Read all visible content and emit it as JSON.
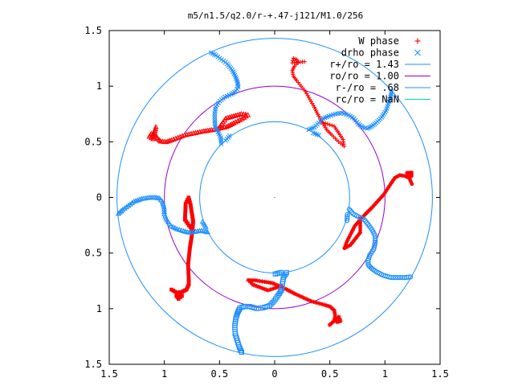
{
  "chart_data": {
    "type": "scatter",
    "title": "m5/n1.5/q2.0/r-+.47-j121/M1.0/256",
    "xlabel": "",
    "ylabel": "",
    "xlim": [
      -1.5,
      1.5
    ],
    "ylim": [
      -1.5,
      1.5
    ],
    "x_ticks": [
      -1.5,
      -1,
      -0.5,
      0,
      0.5,
      1,
      1.5
    ],
    "x_tick_labels": [
      "1.5",
      "1",
      "0.5",
      "0",
      "0.5",
      "1",
      "1.5"
    ],
    "y_ticks": [
      1.5,
      1,
      0.5,
      0,
      -0.5,
      -1,
      -1.5
    ],
    "y_tick_labels": [
      "1.5",
      "1",
      "0.5",
      "0",
      "0.5",
      "1",
      "1.5"
    ],
    "grid": false,
    "legend_position": "top-right",
    "legend": [
      {
        "label": "W phase",
        "symbol": "plus",
        "color": "#ff0000"
      },
      {
        "label": "drho phase",
        "symbol": "cross",
        "color": "#1e90ff"
      },
      {
        "label": "r+/ro = 1.43",
        "symbol": "line",
        "color": "#1e90ff"
      },
      {
        "label": "ro/ro = 1.00",
        "symbol": "line",
        "color": "#9400d3"
      },
      {
        "label": "r-/ro = .68",
        "symbol": "line",
        "color": "#1e90ff"
      },
      {
        "label": "rc/ro = NaN",
        "symbol": "line",
        "color": "#00ced1"
      }
    ],
    "circles": [
      {
        "name": "r+/ro",
        "radius": 1.43,
        "color": "#1e90ff"
      },
      {
        "name": "ro/ro",
        "radius": 1.0,
        "color": "#9400d3"
      },
      {
        "name": "r-/ro",
        "radius": 0.68,
        "color": "#1e90ff"
      }
    ],
    "symmetry": {
      "arms": 5,
      "rotation_step_deg": 72
    },
    "series": [
      {
        "name": "W phase",
        "color": "#ff0000",
        "arm_points": [
          [
            0.42,
            0.68
          ],
          [
            0.48,
            0.66
          ],
          [
            0.54,
            0.64
          ],
          [
            0.58,
            0.58
          ],
          [
            0.62,
            0.52
          ],
          [
            0.63,
            0.46
          ],
          [
            0.58,
            0.5
          ],
          [
            0.52,
            0.56
          ],
          [
            0.47,
            0.61
          ],
          [
            0.44,
            0.66
          ],
          [
            0.4,
            0.73
          ],
          [
            0.36,
            0.81
          ],
          [
            0.32,
            0.88
          ],
          [
            0.28,
            0.95
          ],
          [
            0.24,
            1.0
          ],
          [
            0.2,
            1.05
          ],
          [
            0.17,
            1.09
          ],
          [
            0.16,
            1.14
          ],
          [
            0.18,
            1.18
          ],
          [
            0.21,
            1.21
          ],
          [
            0.2,
            1.24
          ],
          [
            0.17,
            1.25
          ],
          [
            0.16,
            1.21
          ],
          [
            0.27,
            1.22
          ]
        ]
      },
      {
        "name": "drho phase",
        "color": "#1e90ff",
        "arm_points": [
          [
            0.31,
            0.61
          ],
          [
            0.36,
            0.63
          ],
          [
            0.4,
            0.67
          ],
          [
            0.44,
            0.71
          ],
          [
            0.49,
            0.73
          ],
          [
            0.55,
            0.75
          ],
          [
            0.61,
            0.76
          ],
          [
            0.67,
            0.74
          ],
          [
            0.72,
            0.71
          ],
          [
            0.76,
            0.66
          ],
          [
            0.8,
            0.63
          ],
          [
            0.84,
            0.62
          ],
          [
            0.88,
            0.64
          ],
          [
            0.92,
            0.67
          ],
          [
            0.97,
            0.72
          ],
          [
            1.01,
            0.78
          ],
          [
            1.03,
            0.84
          ],
          [
            1.05,
            0.9
          ],
          [
            1.06,
            0.95
          ],
          [
            0.4,
            0.56
          ],
          [
            0.35,
            0.58
          ]
        ]
      }
    ]
  }
}
